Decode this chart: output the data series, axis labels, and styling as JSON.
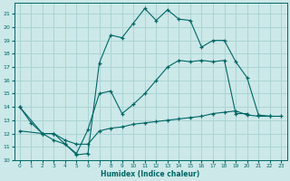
{
  "xlabel": "Humidex (Indice chaleur)",
  "ylabel": "",
  "xlim": [
    -0.5,
    23.5
  ],
  "ylim": [
    10,
    21.8
  ],
  "yticks": [
    10,
    11,
    12,
    13,
    14,
    15,
    16,
    17,
    18,
    19,
    20,
    21
  ],
  "xticks": [
    0,
    1,
    2,
    3,
    4,
    5,
    6,
    7,
    8,
    9,
    10,
    11,
    12,
    13,
    14,
    15,
    16,
    17,
    18,
    19,
    20,
    21,
    22,
    23
  ],
  "bg_color": "#cce8e8",
  "grid_color": "#aad4d4",
  "line_color": "#006666",
  "line1_x": [
    0,
    1,
    2,
    3,
    4,
    5,
    6,
    7,
    8,
    9,
    10,
    11,
    12,
    13,
    14,
    15,
    16,
    17,
    18,
    19,
    20,
    21,
    22
  ],
  "line1_y": [
    14.0,
    12.8,
    12.0,
    11.5,
    11.2,
    10.4,
    10.5,
    17.3,
    19.4,
    19.2,
    20.3,
    21.4,
    20.5,
    21.3,
    20.6,
    20.5,
    18.5,
    19.0,
    19.0,
    17.4,
    16.2,
    13.4,
    13.3
  ],
  "line2_x": [
    0,
    2,
    3,
    4,
    5,
    6,
    7,
    8,
    9,
    10,
    11,
    12,
    13,
    14,
    15,
    16,
    17,
    18,
    19,
    20
  ],
  "line2_y": [
    14.0,
    12.0,
    12.0,
    11.2,
    10.5,
    12.3,
    15.0,
    15.2,
    13.5,
    14.2,
    15.0,
    16.0,
    17.0,
    17.5,
    17.4,
    17.5,
    17.4,
    17.5,
    13.5,
    13.5
  ],
  "line3_x": [
    0,
    2,
    3,
    4,
    5,
    6,
    7,
    8,
    9,
    10,
    11,
    12,
    13,
    14,
    15,
    16,
    17,
    18,
    19,
    20,
    21,
    22,
    23
  ],
  "line3_y": [
    12.2,
    12.0,
    12.0,
    11.5,
    11.2,
    11.2,
    12.2,
    12.4,
    12.5,
    12.7,
    12.8,
    12.9,
    13.0,
    13.1,
    13.2,
    13.3,
    13.5,
    13.6,
    13.7,
    13.4,
    13.3,
    13.3,
    13.3
  ]
}
